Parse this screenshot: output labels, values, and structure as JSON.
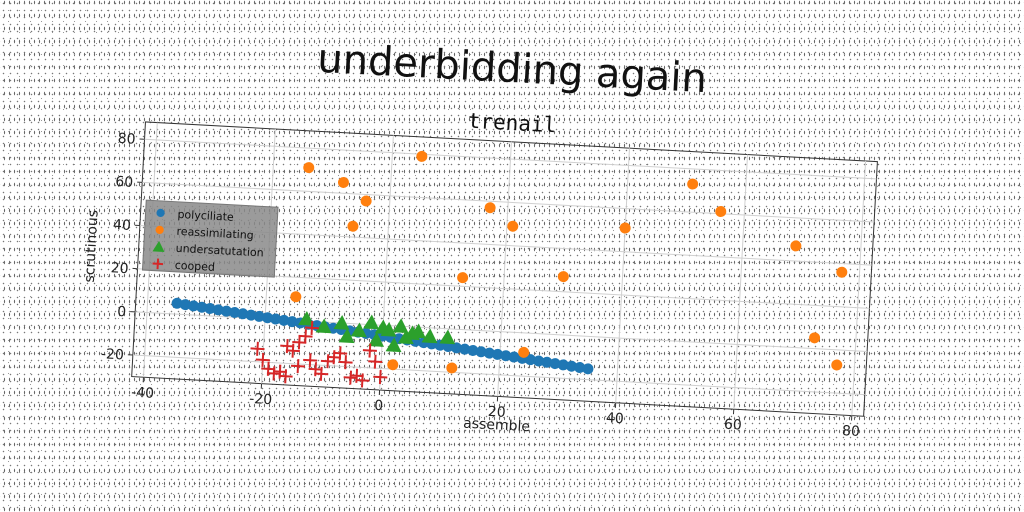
{
  "chart_data": {
    "type": "scatter",
    "title": "underbidding again",
    "subtitle": "trenail",
    "xlabel": "assemble",
    "ylabel": "scrutinous",
    "xlim": [
      -42,
      82
    ],
    "ylim": [
      -30,
      88
    ],
    "xticks": [
      -40,
      -20,
      0,
      20,
      40,
      60,
      80
    ],
    "yticks": [
      -20,
      0,
      20,
      40,
      60,
      80
    ],
    "grid": true,
    "legend_position": "center-left",
    "series": [
      {
        "name": "polyciliate",
        "marker": "circle",
        "color": "#1f77b4",
        "x": [
          -35,
          -33.6,
          -32.2,
          -30.8,
          -29.4,
          -28,
          -26.6,
          -25.2,
          -23.8,
          -22.4,
          -21,
          -19.6,
          -18.2,
          -16.8,
          -15.4,
          -14,
          -12.6,
          -11.2,
          -9.8,
          -8.4,
          -7,
          -5.6,
          -4.2,
          -2.8,
          -1.4,
          0,
          1.4,
          2.8,
          4.2,
          5.6,
          7,
          8.4,
          9.8,
          11.2,
          12.6,
          14,
          15.4,
          16.8,
          18.2,
          19.6,
          21,
          22.4,
          23.8,
          25.2,
          26.6,
          28,
          29.4,
          30.8,
          32.2,
          33.6,
          35
        ],
        "y": [
          5,
          4.6,
          4.2,
          3.8,
          3.4,
          3,
          2.6,
          2.2,
          1.8,
          1.4,
          1,
          0.6,
          0.2,
          -0.2,
          -0.6,
          -1,
          -1.4,
          -1.8,
          -2.2,
          -2.6,
          -3,
          -3.4,
          -3.8,
          -4.2,
          -4.6,
          -5,
          -5.4,
          -5.8,
          -6.2,
          -6.6,
          -7,
          -7.4,
          -7.8,
          -8.2,
          -8.6,
          -9,
          -9.4,
          -9.8,
          -10.2,
          -10.6,
          -11,
          -11.4,
          -11.8,
          -12.2,
          -12.6,
          -13,
          -13.4,
          -13.8,
          -14.2,
          -14.6,
          -15
        ]
      },
      {
        "name": "reassimilating",
        "marker": "circle",
        "color": "#ff7f0e",
        "x": [
          -14,
          -8,
          -4,
          -6,
          -15,
          5,
          17,
          21,
          13,
          12,
          2,
          24,
          30,
          40,
          51,
          56,
          69,
          77,
          73,
          77
        ],
        "y": [
          71,
          65,
          57,
          45,
          11,
          79,
          57,
          49,
          24,
          -18,
          -18,
          -9,
          27,
          51,
          73,
          61,
          47,
          36,
          5,
          -7
        ]
      },
      {
        "name": "undersatutation",
        "marker": "triangle",
        "color": "#2ca02c",
        "x": [
          -13,
          -10,
          -7,
          -6,
          -4,
          -2,
          -1,
          0,
          1,
          2,
          3,
          4,
          5,
          6,
          8,
          11
        ],
        "y": [
          1,
          -2,
          0,
          -6,
          -3,
          1,
          -7,
          -1,
          -2,
          -9,
          0,
          -5,
          -3,
          -2,
          -4,
          -4
        ]
      },
      {
        "name": "cooped",
        "marker": "plus",
        "color": "#d62728",
        "x": [
          -21,
          -20,
          -19,
          -18,
          -17,
          -16,
          -15,
          -14,
          -13,
          -12,
          -11,
          -10,
          -9,
          -8,
          -7,
          -6,
          -5,
          -4,
          -3,
          -2,
          -1,
          0,
          -12,
          -14,
          -16
        ],
        "y": [
          -14,
          -19,
          -23,
          -25,
          -24,
          -26,
          -14,
          -21,
          -7,
          -18,
          -22,
          -24,
          -18,
          -16,
          -14,
          -18,
          -25,
          -24,
          -26,
          -12,
          -17,
          -24,
          -3,
          -10,
          -12
        ]
      }
    ]
  }
}
